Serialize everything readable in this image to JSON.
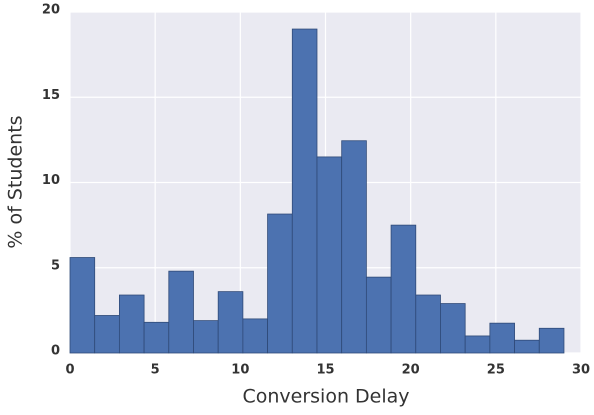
{
  "chart_data": {
    "type": "histogram",
    "xlabel": "Conversion Delay",
    "ylabel": "% of Students",
    "bins": [
      0,
      1.45,
      2.9,
      4.35,
      5.8,
      7.25,
      8.7,
      10.15,
      11.6,
      13.05,
      14.5,
      15.95,
      17.4,
      18.85,
      20.3,
      21.75,
      23.2,
      24.65,
      26.1,
      27.55,
      29
    ],
    "values": [
      5.6,
      2.2,
      3.4,
      1.8,
      4.8,
      1.9,
      3.6,
      2.0,
      8.15,
      19.0,
      11.5,
      12.45,
      4.45,
      7.5,
      3.4,
      2.9,
      1.0,
      1.75,
      0.75,
      1.45
    ],
    "color": "#4c72b0",
    "xlim": [
      0,
      30
    ],
    "xticks": [
      0,
      5,
      10,
      15,
      20,
      25,
      30
    ],
    "ylim": [
      0,
      20
    ],
    "yticks": [
      0,
      5,
      10,
      15,
      20
    ],
    "grid": true
  }
}
